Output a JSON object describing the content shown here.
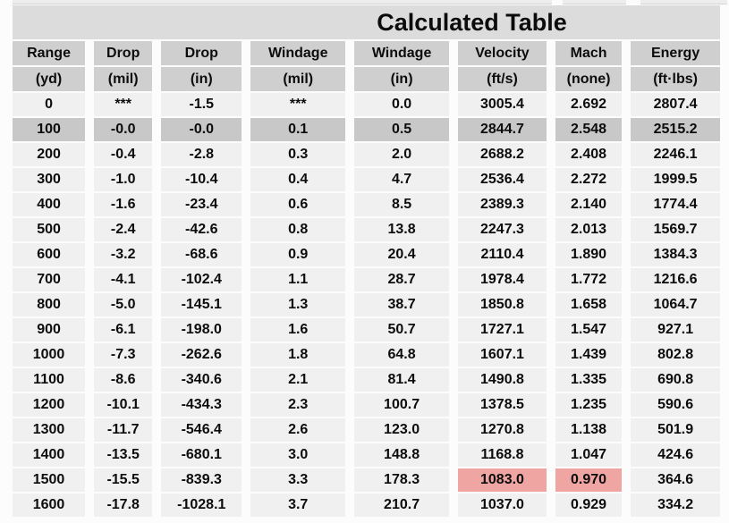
{
  "table": {
    "title": "Calculated Table",
    "columns": [
      {
        "key": "range",
        "label": "Range",
        "unit": "(yd)"
      },
      {
        "key": "drop-mil",
        "label": "Drop",
        "unit": "(mil)"
      },
      {
        "key": "drop-in",
        "label": "Drop",
        "unit": "(in)"
      },
      {
        "key": "windage-mil",
        "label": "Windage",
        "unit": "(mil)"
      },
      {
        "key": "windage-in",
        "label": "Windage",
        "unit": "(in)"
      },
      {
        "key": "velocity",
        "label": "Velocity",
        "unit": "(ft/s)"
      },
      {
        "key": "mach",
        "label": "Mach",
        "unit": "(none)"
      },
      {
        "key": "energy",
        "label": "Energy",
        "unit": "(ft·lbs)"
      }
    ],
    "rows": [
      [
        "0",
        "***",
        "-1.5",
        "***",
        "0.0",
        "3005.4",
        "2.692",
        "2807.4"
      ],
      [
        "100",
        "-0.0",
        "-0.0",
        "0.1",
        "0.5",
        "2844.7",
        "2.548",
        "2515.2"
      ],
      [
        "200",
        "-0.4",
        "-2.8",
        "0.3",
        "2.0",
        "2688.2",
        "2.408",
        "2246.1"
      ],
      [
        "300",
        "-1.0",
        "-10.4",
        "0.4",
        "4.7",
        "2536.4",
        "2.272",
        "1999.5"
      ],
      [
        "400",
        "-1.6",
        "-23.4",
        "0.6",
        "8.5",
        "2389.3",
        "2.140",
        "1774.4"
      ],
      [
        "500",
        "-2.4",
        "-42.6",
        "0.8",
        "13.8",
        "2247.3",
        "2.013",
        "1569.7"
      ],
      [
        "600",
        "-3.2",
        "-68.6",
        "0.9",
        "20.4",
        "2110.4",
        "1.890",
        "1384.3"
      ],
      [
        "700",
        "-4.1",
        "-102.4",
        "1.1",
        "28.7",
        "1978.4",
        "1.772",
        "1216.6"
      ],
      [
        "800",
        "-5.0",
        "-145.1",
        "1.3",
        "38.7",
        "1850.8",
        "1.658",
        "1064.7"
      ],
      [
        "900",
        "-6.1",
        "-198.0",
        "1.6",
        "50.7",
        "1727.1",
        "1.547",
        "927.1"
      ],
      [
        "1000",
        "-7.3",
        "-262.6",
        "1.8",
        "64.8",
        "1607.1",
        "1.439",
        "802.8"
      ],
      [
        "1100",
        "-8.6",
        "-340.6",
        "2.1",
        "81.4",
        "1490.8",
        "1.335",
        "690.8"
      ],
      [
        "1200",
        "-10.1",
        "-434.3",
        "2.3",
        "100.7",
        "1378.5",
        "1.235",
        "590.6"
      ],
      [
        "1300",
        "-11.7",
        "-546.4",
        "2.6",
        "123.0",
        "1270.8",
        "1.138",
        "501.9"
      ],
      [
        "1400",
        "-13.5",
        "-680.1",
        "3.0",
        "148.8",
        "1168.8",
        "1.047",
        "424.6"
      ],
      [
        "1500",
        "-15.5",
        "-839.3",
        "3.3",
        "178.3",
        "1083.0",
        "0.970",
        "364.6"
      ],
      [
        "1600",
        "-17.8",
        "-1028.1",
        "3.7",
        "210.7",
        "1037.0",
        "0.929",
        "334.2"
      ]
    ],
    "selected_row_index": 1,
    "alert_cells": [
      [
        15,
        5
      ],
      [
        15,
        6
      ]
    ],
    "colors": {
      "title_bg": "#dcdcdc",
      "header_bg": "#cfcfcf",
      "row_bg": "#f0f0f0",
      "selected_row_bg": "#c8c8c8",
      "alert_bg": "#efa5a1",
      "text": "#0c0c0c"
    }
  }
}
